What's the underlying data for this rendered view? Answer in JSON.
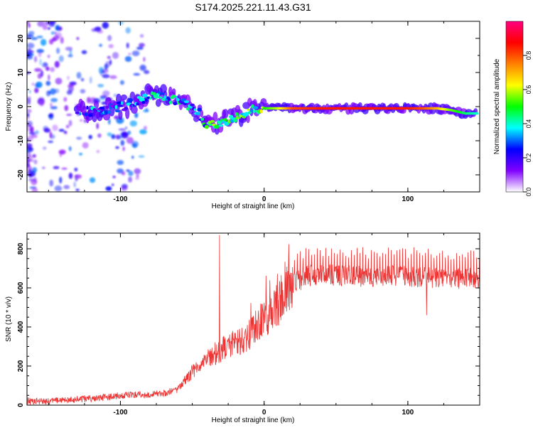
{
  "figure": {
    "title": "S174.2025.221.11.43.G31"
  },
  "chart_data": [
    {
      "type": "heatmap",
      "xlabel": "Height of straight line (km)",
      "ylabel": "Frequency (Hz)",
      "xlim": [
        -165,
        150
      ],
      "ylim": [
        -25,
        25
      ],
      "xticks": [
        -100,
        0,
        100
      ],
      "yticks": [
        -20,
        -10,
        0,
        10,
        20
      ],
      "grid": false,
      "colorbar": {
        "label": "Normalized spectral amplitude",
        "range": [
          0,
          1
        ],
        "ticks": [
          0.0,
          0.2,
          0.4,
          0.6,
          0.8
        ],
        "colors": [
          "#ffffff",
          "#8000ff",
          "#0000ff",
          "#00ffff",
          "#00ff00",
          "#ffff00",
          "#ff8000",
          "#ff0000",
          "#ff0080"
        ]
      },
      "ridge": {
        "x": [
          -130,
          -120,
          -110,
          -100,
          -90,
          -80,
          -70,
          -60,
          -50,
          -45,
          -42,
          -38,
          -30,
          -20,
          -10,
          0,
          10,
          20,
          40,
          60,
          80,
          100,
          110,
          120,
          130,
          140,
          148
        ],
        "y": [
          -1,
          -1.5,
          -1,
          0,
          1,
          3,
          3,
          1.5,
          0,
          -2,
          -5,
          -5,
          -5,
          -3,
          -1,
          -0.5,
          -0.5,
          -0.5,
          -0.5,
          -0.5,
          -0.5,
          -0.5,
          -0.5,
          -0.5,
          -1,
          -2,
          -2
        ],
        "strength": [
          0.15,
          0.3,
          0.25,
          0.25,
          0.3,
          0.35,
          0.3,
          0.35,
          0.3,
          0.35,
          0.35,
          0.45,
          0.5,
          0.45,
          0.45,
          0.5,
          0.6,
          0.8,
          0.85,
          0.85,
          0.85,
          0.85,
          0.8,
          0.7,
          0.55,
          0.45,
          0.4
        ]
      }
    },
    {
      "type": "line",
      "xlabel": "Height of straight line (km)",
      "ylabel": "SNR (10 * v/v)",
      "xlim": [
        -165,
        150
      ],
      "ylim": [
        0,
        880
      ],
      "xticks": [
        -100,
        0,
        100
      ],
      "yticks": [
        0,
        200,
        400,
        600,
        800
      ],
      "grid": false,
      "series": [
        {
          "color": "#ee3333",
          "x": [
            -165,
            -150,
            -140,
            -130,
            -120,
            -110,
            -100,
            -90,
            -80,
            -70,
            -60,
            -55,
            -50,
            -45,
            -40,
            -35,
            -30,
            -25,
            -20,
            -15,
            -10,
            -5,
            0,
            5,
            10,
            15,
            20,
            25,
            30,
            40,
            60,
            80,
            100,
            120,
            140,
            150
          ],
          "y": [
            20,
            20,
            25,
            30,
            35,
            40,
            50,
            55,
            55,
            60,
            80,
            130,
            170,
            200,
            230,
            260,
            280,
            300,
            320,
            330,
            360,
            410,
            440,
            470,
            520,
            580,
            620,
            640,
            660,
            670,
            660,
            660,
            660,
            650,
            650,
            650
          ]
        }
      ],
      "spikes": [
        {
          "x": -31,
          "y": 870
        },
        {
          "x": 113,
          "y": 460
        }
      ]
    }
  ]
}
